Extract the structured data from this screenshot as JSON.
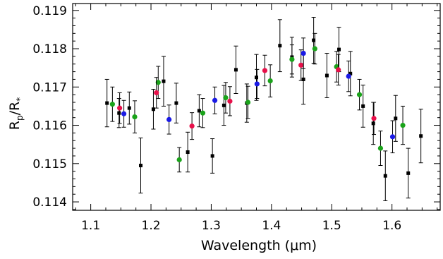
{
  "chart_data": {
    "type": "scatter",
    "title": "",
    "xlabel": "Wavelength (μm)",
    "ylabel_main": "R",
    "ylabel_sub1": "p",
    "ylabel_mid": "/R",
    "ylabel_sub2": "*",
    "xlim": [
      1.07,
      1.68
    ],
    "ylim": [
      0.11378,
      0.11918
    ],
    "x_ticks": [
      1.1,
      1.2,
      1.3,
      1.4,
      1.5,
      1.6
    ],
    "x_tick_labels": [
      "1.1",
      "1.2",
      "1.3",
      "1.4",
      "1.5",
      "1.6"
    ],
    "y_ticks": [
      0.114,
      0.115,
      0.116,
      0.117,
      0.118,
      0.119
    ],
    "y_tick_labels": [
      "0.114",
      "0.115",
      "0.116",
      "0.117",
      "0.118",
      "0.119"
    ],
    "grid": false,
    "series": [
      {
        "color": "#000000",
        "marker": "square",
        "points": [
          {
            "x": 1.127,
            "y": 0.11658,
            "err": 0.00062
          },
          {
            "x": 1.147,
            "y": 0.11632,
            "err": 0.00038
          },
          {
            "x": 1.164,
            "y": 0.11645,
            "err": 0.00042
          },
          {
            "x": 1.183,
            "y": 0.11495,
            "err": 0.00072
          },
          {
            "x": 1.204,
            "y": 0.11642,
            "err": 0.00052
          },
          {
            "x": 1.221,
            "y": 0.11715,
            "err": 0.00065
          },
          {
            "x": 1.242,
            "y": 0.11658,
            "err": 0.00052
          },
          {
            "x": 1.261,
            "y": 0.1153,
            "err": 0.00052
          },
          {
            "x": 1.28,
            "y": 0.11638,
            "err": 0.00042
          },
          {
            "x": 1.302,
            "y": 0.1152,
            "err": 0.00045
          },
          {
            "x": 1.321,
            "y": 0.11652,
            "err": 0.00052
          },
          {
            "x": 1.341,
            "y": 0.11745,
            "err": 0.00062
          },
          {
            "x": 1.359,
            "y": 0.11658,
            "err": 0.0005
          },
          {
            "x": 1.375,
            "y": 0.11725,
            "err": 0.0006
          },
          {
            "x": 1.414,
            "y": 0.11808,
            "err": 0.00068
          },
          {
            "x": 1.434,
            "y": 0.11778,
            "err": 0.00052
          },
          {
            "x": 1.453,
            "y": 0.1172,
            "err": 0.00065
          },
          {
            "x": 1.47,
            "y": 0.11822,
            "err": 0.0006
          },
          {
            "x": 1.492,
            "y": 0.1173,
            "err": 0.00058
          },
          {
            "x": 1.512,
            "y": 0.11798,
            "err": 0.00058
          },
          {
            "x": 1.531,
            "y": 0.11735,
            "err": 0.00058
          },
          {
            "x": 1.552,
            "y": 0.1165,
            "err": 0.00055
          },
          {
            "x": 1.569,
            "y": 0.11605,
            "err": 0.00055
          },
          {
            "x": 1.589,
            "y": 0.11468,
            "err": 0.00065
          },
          {
            "x": 1.606,
            "y": 0.11618,
            "err": 0.0006
          },
          {
            "x": 1.627,
            "y": 0.11475,
            "err": 0.00065
          },
          {
            "x": 1.648,
            "y": 0.11572,
            "err": 0.0007
          }
        ]
      },
      {
        "color": "#1aa31a",
        "marker": "circle",
        "points": [
          {
            "x": 1.136,
            "y": 0.11655,
            "err": 0.00045
          },
          {
            "x": 1.173,
            "y": 0.11622,
            "err": 0.00042
          },
          {
            "x": 1.212,
            "y": 0.11712,
            "err": 0.00042
          },
          {
            "x": 1.247,
            "y": 0.1151,
            "err": 0.00032
          },
          {
            "x": 1.286,
            "y": 0.11632,
            "err": 0.00038
          },
          {
            "x": 1.324,
            "y": 0.11672,
            "err": 0.0004
          },
          {
            "x": 1.361,
            "y": 0.1166,
            "err": 0.00042
          },
          {
            "x": 1.398,
            "y": 0.11716,
            "err": 0.00042
          },
          {
            "x": 1.434,
            "y": 0.11772,
            "err": 0.00038
          },
          {
            "x": 1.472,
            "y": 0.118,
            "err": 0.0004
          },
          {
            "x": 1.508,
            "y": 0.11753,
            "err": 0.0004
          },
          {
            "x": 1.546,
            "y": 0.1168,
            "err": 0.0004
          },
          {
            "x": 1.581,
            "y": 0.1154,
            "err": 0.00045
          },
          {
            "x": 1.618,
            "y": 0.116,
            "err": 0.0005
          }
        ]
      },
      {
        "color": "#e8104a",
        "marker": "circle",
        "points": [
          {
            "x": 1.148,
            "y": 0.11645,
            "err": 0.0004
          },
          {
            "x": 1.209,
            "y": 0.11685,
            "err": 0.0004
          },
          {
            "x": 1.268,
            "y": 0.11598,
            "err": 0.00035
          },
          {
            "x": 1.331,
            "y": 0.11663,
            "err": 0.00038
          },
          {
            "x": 1.389,
            "y": 0.11743,
            "err": 0.0004
          },
          {
            "x": 1.449,
            "y": 0.11757,
            "err": 0.0004
          },
          {
            "x": 1.511,
            "y": 0.11745,
            "err": 0.0004
          },
          {
            "x": 1.57,
            "y": 0.11618,
            "err": 0.00042
          }
        ]
      },
      {
        "color": "#1a1ae6",
        "marker": "circle",
        "points": [
          {
            "x": 1.155,
            "y": 0.1163,
            "err": 0.00035
          },
          {
            "x": 1.23,
            "y": 0.11615,
            "err": 0.00038
          },
          {
            "x": 1.306,
            "y": 0.11665,
            "err": 0.00035
          },
          {
            "x": 1.376,
            "y": 0.11708,
            "err": 0.00038
          },
          {
            "x": 1.453,
            "y": 0.11788,
            "err": 0.0004
          },
          {
            "x": 1.528,
            "y": 0.11728,
            "err": 0.0004
          },
          {
            "x": 1.601,
            "y": 0.1157,
            "err": 0.00042
          }
        ]
      }
    ]
  }
}
